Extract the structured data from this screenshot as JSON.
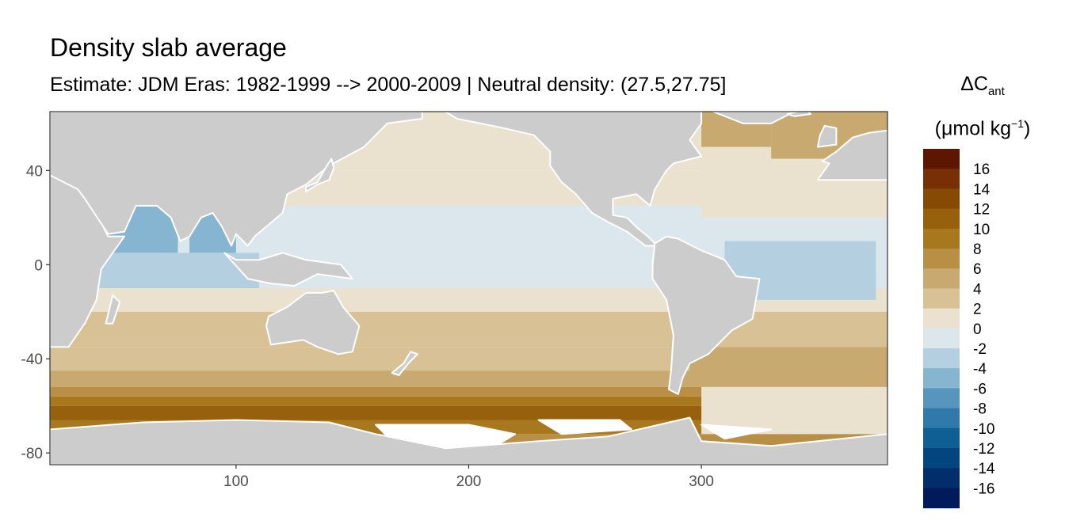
{
  "chart_data": {
    "type": "heatmap",
    "title": "Density slab average",
    "subtitle": "Estimate: JDM Eras: 1982-1999 --> 2000-2009 | Neutral density: (27.5,27.75]",
    "xlabel": "",
    "ylabel": "",
    "xlim": [
      20,
      380
    ],
    "ylim": [
      -85,
      65
    ],
    "x_ticks": [
      100,
      200,
      300
    ],
    "y_ticks": [
      40,
      0,
      -40,
      -80
    ],
    "grid": false,
    "legend": {
      "title_main": "ΔC",
      "title_sub": "ant",
      "unit_prefix": "(μmol kg",
      "unit_sup": "−1",
      "unit_suffix": ")",
      "position": "right",
      "breaks": [
        16,
        14,
        12,
        10,
        8,
        6,
        4,
        2,
        0,
        -2,
        -4,
        -6,
        -8,
        -10,
        -12,
        -14,
        -16
      ],
      "colors": [
        "#5c1602",
        "#772f03",
        "#874a05",
        "#97600d",
        "#a8781e",
        "#b88f45",
        "#c8a96f",
        "#d8c295",
        "#eae1cf",
        "#dce7ed",
        "#b3cfe0",
        "#85b5d0",
        "#5795bd",
        "#2f7aaa",
        "#0f5f95",
        "#03457f",
        "#022f6c",
        "#011a5c"
      ]
    },
    "land_color": "#cccccc",
    "bands": [
      {
        "lat_from": 65,
        "lat_to": 48,
        "value": 1
      },
      {
        "lat_from": 48,
        "lat_to": 40,
        "value": 1.5
      },
      {
        "lat_from": 40,
        "lat_to": 25,
        "value": 0.5
      },
      {
        "lat_from": 25,
        "lat_to": -10,
        "value": -1
      },
      {
        "lat_from": -10,
        "lat_to": -20,
        "value": 0.5
      },
      {
        "lat_from": -20,
        "lat_to": -35,
        "value": 2.5
      },
      {
        "lat_from": -35,
        "lat_to": -45,
        "value": 3.5
      },
      {
        "lat_from": -45,
        "lat_to": -52,
        "value": 5
      },
      {
        "lat_from": -52,
        "lat_to": -56,
        "value": 7
      },
      {
        "lat_from": -56,
        "lat_to": -60,
        "value": 9
      },
      {
        "lat_from": -60,
        "lat_to": -66,
        "value": 11
      },
      {
        "lat_from": -66,
        "lat_to": -72,
        "value": 10
      },
      {
        "lat_from": -72,
        "lat_to": -77,
        "value": 8
      }
    ],
    "patches": [
      {
        "name": "arabian-sea",
        "lon": [
          40,
          75
        ],
        "lat": [
          5,
          25
        ],
        "value": -4
      },
      {
        "name": "bay-of-bengal",
        "lon": [
          80,
          100
        ],
        "lat": [
          5,
          22
        ],
        "value": -4
      },
      {
        "name": "indian-ocean-west",
        "lon": [
          20,
          110
        ],
        "lat": [
          -10,
          5
        ],
        "value": -2
      },
      {
        "name": "atlantic-east-equatorial",
        "lon": [
          310,
          375
        ],
        "lat": [
          -15,
          10
        ],
        "value": -3
      },
      {
        "name": "north-atlantic",
        "lon": [
          300,
          380
        ],
        "lat": [
          20,
          45
        ],
        "value": 1
      },
      {
        "name": "north-atlantic-high",
        "lon": [
          330,
          380
        ],
        "lat": [
          45,
          65
        ],
        "value": 5
      },
      {
        "name": "labrador-sea",
        "lon": [
          300,
          330
        ],
        "lat": [
          50,
          65
        ],
        "value": 6
      },
      {
        "name": "south-atlantic",
        "lon": [
          295,
          380
        ],
        "lat": [
          -50,
          -35
        ],
        "value": 5
      },
      {
        "name": "weddell",
        "lon": [
          300,
          380
        ],
        "lat": [
          -72,
          -52
        ],
        "value": 2
      },
      {
        "name": "okhotsk",
        "lon": [
          140,
          165
        ],
        "lat": [
          45,
          60
        ],
        "value": 2
      }
    ],
    "land": [
      {
        "name": "africa",
        "points": [
          [
            20,
            38
          ],
          [
            35,
            32
          ],
          [
            45,
            12
          ],
          [
            52,
            12
          ],
          [
            42,
            -2
          ],
          [
            40,
            -15
          ],
          [
            35,
            -25
          ],
          [
            28,
            -35
          ],
          [
            20,
            -35
          ]
        ]
      },
      {
        "name": "eurasia",
        "points": [
          [
            20,
            65
          ],
          [
            180,
            65
          ],
          [
            180,
            62
          ],
          [
            165,
            60
          ],
          [
            155,
            50
          ],
          [
            140,
            42
          ],
          [
            130,
            34
          ],
          [
            122,
            30
          ],
          [
            120,
            22
          ],
          [
            108,
            12
          ],
          [
            105,
            8
          ],
          [
            100,
            13
          ],
          [
            98,
            8
          ],
          [
            94,
            16
          ],
          [
            90,
            22
          ],
          [
            85,
            20
          ],
          [
            80,
            12
          ],
          [
            76,
            10
          ],
          [
            72,
            20
          ],
          [
            66,
            25
          ],
          [
            57,
            25
          ],
          [
            52,
            14
          ],
          [
            45,
            13
          ],
          [
            35,
            28
          ],
          [
            32,
            32
          ],
          [
            20,
            38
          ]
        ]
      },
      {
        "name": "southeast-asia-islands",
        "points": [
          [
            95,
            5
          ],
          [
            105,
            -6
          ],
          [
            115,
            -8
          ],
          [
            125,
            -9
          ],
          [
            135,
            -4
          ],
          [
            150,
            -6
          ],
          [
            145,
            0
          ],
          [
            130,
            2
          ],
          [
            120,
            5
          ],
          [
            110,
            2
          ],
          [
            100,
            2
          ]
        ]
      },
      {
        "name": "australia",
        "points": [
          [
            114,
            -22
          ],
          [
            122,
            -18
          ],
          [
            130,
            -12
          ],
          [
            137,
            -12
          ],
          [
            142,
            -11
          ],
          [
            146,
            -18
          ],
          [
            153,
            -26
          ],
          [
            150,
            -37
          ],
          [
            144,
            -38
          ],
          [
            135,
            -35
          ],
          [
            129,
            -32
          ],
          [
            115,
            -34
          ],
          [
            113,
            -26
          ]
        ]
      },
      {
        "name": "new-zealand",
        "points": [
          [
            167,
            -46
          ],
          [
            172,
            -42
          ],
          [
            175,
            -37
          ],
          [
            178,
            -38
          ],
          [
            174,
            -42
          ],
          [
            170,
            -47
          ]
        ]
      },
      {
        "name": "madagascar",
        "points": [
          [
            44,
            -25
          ],
          [
            47,
            -13
          ],
          [
            50,
            -16
          ],
          [
            47,
            -25
          ]
        ]
      },
      {
        "name": "north-america",
        "points": [
          [
            190,
            65
          ],
          [
            300,
            65
          ],
          [
            300,
            60
          ],
          [
            295,
            53
          ],
          [
            300,
            46
          ],
          [
            288,
            43
          ],
          [
            285,
            40
          ],
          [
            280,
            32
          ],
          [
            278,
            25
          ],
          [
            272,
            30
          ],
          [
            262,
            28
          ],
          [
            262,
            21
          ],
          [
            268,
            20
          ],
          [
            272,
            16
          ],
          [
            277,
            12
          ],
          [
            280,
            9
          ],
          [
            285,
            8
          ],
          [
            276,
            8
          ],
          [
            268,
            14
          ],
          [
            260,
            18
          ],
          [
            253,
            22
          ],
          [
            246,
            30
          ],
          [
            240,
            35
          ],
          [
            235,
            42
          ],
          [
            235,
            48
          ],
          [
            228,
            55
          ],
          [
            215,
            58
          ],
          [
            205,
            60
          ],
          [
            195,
            62
          ]
        ]
      },
      {
        "name": "south-america",
        "points": [
          [
            280,
            9
          ],
          [
            285,
            12
          ],
          [
            290,
            11
          ],
          [
            300,
            6
          ],
          [
            310,
            2
          ],
          [
            315,
            -5
          ],
          [
            325,
            -6
          ],
          [
            322,
            -23
          ],
          [
            313,
            -28
          ],
          [
            303,
            -38
          ],
          [
            295,
            -42
          ],
          [
            292,
            -48
          ],
          [
            290,
            -55
          ],
          [
            286,
            -53
          ],
          [
            287,
            -45
          ],
          [
            288,
            -30
          ],
          [
            285,
            -15
          ],
          [
            279,
            -6
          ],
          [
            279,
            0
          ]
        ]
      },
      {
        "name": "greenland",
        "points": [
          [
            305,
            65
          ],
          [
            340,
            65
          ],
          [
            330,
            60
          ],
          [
            318,
            60
          ]
        ]
      },
      {
        "name": "iceland",
        "points": [
          [
            337,
            64
          ],
          [
            345,
            66
          ],
          [
            347,
            64
          ],
          [
            340,
            63
          ]
        ]
      },
      {
        "name": "british-isles",
        "points": [
          [
            350,
            50
          ],
          [
            358,
            51
          ],
          [
            358,
            58
          ],
          [
            353,
            59
          ],
          [
            351,
            55
          ]
        ]
      },
      {
        "name": "europe-west",
        "points": [
          [
            350,
            36
          ],
          [
            355,
            43
          ],
          [
            352,
            44
          ],
          [
            358,
            48
          ],
          [
            365,
            54
          ],
          [
            372,
            56
          ],
          [
            380,
            57
          ],
          [
            380,
            36
          ]
        ]
      },
      {
        "name": "japan",
        "points": [
          [
            130,
            31
          ],
          [
            135,
            34
          ],
          [
            140,
            36
          ],
          [
            142,
            41
          ],
          [
            141,
            45
          ],
          [
            139,
            42
          ],
          [
            135,
            35
          ],
          [
            130,
            33
          ]
        ]
      },
      {
        "name": "antarctica",
        "points": [
          [
            20,
            -70
          ],
          [
            60,
            -67
          ],
          [
            100,
            -66
          ],
          [
            140,
            -67
          ],
          [
            160,
            -72
          ],
          [
            190,
            -78
          ],
          [
            230,
            -75
          ],
          [
            260,
            -73
          ],
          [
            295,
            -65
          ],
          [
            300,
            -75
          ],
          [
            330,
            -77
          ],
          [
            380,
            -72
          ],
          [
            380,
            -85
          ],
          [
            20,
            -85
          ]
        ]
      }
    ],
    "no_data": [
      {
        "name": "ross-sea-gap",
        "points": [
          [
            160,
            -68
          ],
          [
            200,
            -68
          ],
          [
            220,
            -72
          ],
          [
            210,
            -78
          ],
          [
            170,
            -78
          ]
        ]
      },
      {
        "name": "amundsen-gap",
        "points": [
          [
            230,
            -66
          ],
          [
            265,
            -66
          ],
          [
            270,
            -70
          ],
          [
            240,
            -72
          ]
        ]
      },
      {
        "name": "weddell-gap",
        "points": [
          [
            300,
            -68
          ],
          [
            330,
            -70
          ],
          [
            310,
            -74
          ]
        ]
      }
    ]
  }
}
